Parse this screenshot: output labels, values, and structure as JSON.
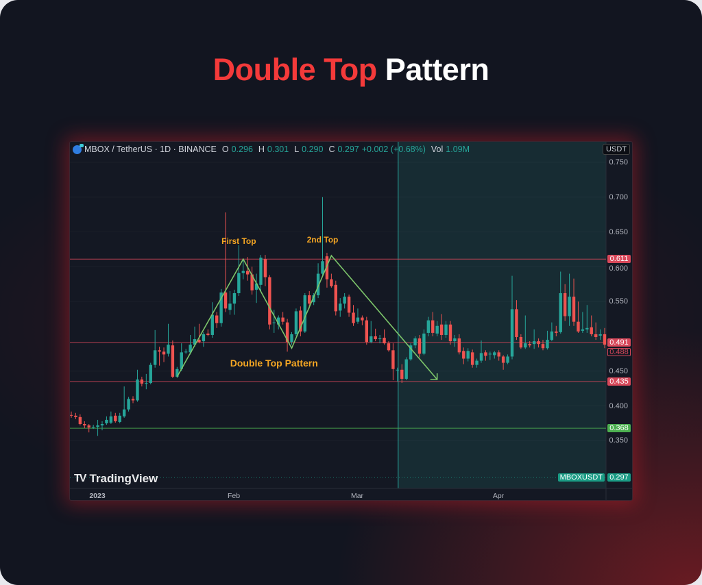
{
  "title": {
    "highlight": "Double Top",
    "rest": "Pattern"
  },
  "header": {
    "symbol": "MBOX / TetherUS · 1D · BINANCE",
    "o_label": "O",
    "o": "0.296",
    "h_label": "H",
    "h": "0.301",
    "l_label": "L",
    "l": "0.290",
    "c_label": "C",
    "c": "0.297",
    "change": "+0.002 (+0.68%)",
    "vol_label": "Vol",
    "vol": "1.09M"
  },
  "currency": "USDT",
  "branding": "TradingView",
  "symbol_tag": "MBOXUSDT",
  "colors": {
    "up": "#26a69a",
    "down": "#ef5350",
    "level": "#d8485a",
    "support": "#4caf50",
    "trend": "#7cc46a",
    "annotation": "#f5a623",
    "title_accent": "#f43a3a"
  },
  "chart_data": {
    "type": "candlestick",
    "title": "",
    "ylim": [
      0.322,
      0.78
    ],
    "y_ticks": [
      "0.750",
      "0.700",
      "0.650",
      "0.600",
      "0.550",
      "0.450",
      "0.400",
      "0.350"
    ],
    "x_ticks": [
      "2023",
      "Feb",
      "Mar",
      "Apr"
    ],
    "start": "2022-12-26",
    "ohlc": [
      [
        0.387,
        0.392,
        0.383,
        0.386
      ],
      [
        0.386,
        0.39,
        0.381,
        0.384
      ],
      [
        0.384,
        0.388,
        0.372,
        0.374
      ],
      [
        0.374,
        0.378,
        0.368,
        0.372
      ],
      [
        0.372,
        0.374,
        0.362,
        0.369
      ],
      [
        0.369,
        0.373,
        0.367,
        0.37
      ],
      [
        0.37,
        0.38,
        0.357,
        0.372
      ],
      [
        0.372,
        0.378,
        0.365,
        0.374
      ],
      [
        0.375,
        0.385,
        0.373,
        0.38
      ],
      [
        0.376,
        0.392,
        0.374,
        0.385
      ],
      [
        0.386,
        0.39,
        0.376,
        0.378
      ],
      [
        0.377,
        0.39,
        0.375,
        0.386
      ],
      [
        0.385,
        0.428,
        0.383,
        0.395
      ],
      [
        0.395,
        0.413,
        0.392,
        0.41
      ],
      [
        0.41,
        0.414,
        0.404,
        0.408
      ],
      [
        0.408,
        0.452,
        0.406,
        0.438
      ],
      [
        0.438,
        0.442,
        0.428,
        0.432
      ],
      [
        0.432,
        0.446,
        0.424,
        0.433
      ],
      [
        0.433,
        0.462,
        0.431,
        0.459
      ],
      [
        0.459,
        0.509,
        0.455,
        0.48
      ],
      [
        0.48,
        0.485,
        0.458,
        0.478
      ],
      [
        0.478,
        0.484,
        0.463,
        0.474
      ],
      [
        0.475,
        0.518,
        0.471,
        0.488
      ],
      [
        0.487,
        0.494,
        0.44,
        0.442
      ],
      [
        0.442,
        0.456,
        0.44,
        0.453
      ],
      [
        0.453,
        0.49,
        0.45,
        0.477
      ],
      [
        0.477,
        0.482,
        0.475,
        0.478
      ],
      [
        0.477,
        0.502,
        0.474,
        0.488
      ],
      [
        0.488,
        0.514,
        0.485,
        0.496
      ],
      [
        0.495,
        0.518,
        0.49,
        0.492
      ],
      [
        0.493,
        0.506,
        0.485,
        0.503
      ],
      [
        0.504,
        0.51,
        0.5,
        0.502
      ],
      [
        0.502,
        0.549,
        0.498,
        0.531
      ],
      [
        0.53,
        0.535,
        0.512,
        0.519
      ],
      [
        0.519,
        0.568,
        0.514,
        0.563
      ],
      [
        0.563,
        0.678,
        0.535,
        0.54
      ],
      [
        0.538,
        0.565,
        0.531,
        0.547
      ],
      [
        0.547,
        0.567,
        0.531,
        0.562
      ],
      [
        0.562,
        0.631,
        0.558,
        0.591
      ],
      [
        0.591,
        0.61,
        0.582,
        0.594
      ],
      [
        0.594,
        0.614,
        0.58,
        0.589
      ],
      [
        0.589,
        0.6,
        0.56,
        0.566
      ],
      [
        0.567,
        0.59,
        0.548,
        0.576
      ],
      [
        0.574,
        0.617,
        0.565,
        0.613
      ],
      [
        0.611,
        0.617,
        0.572,
        0.585
      ],
      [
        0.585,
        0.588,
        0.51,
        0.517
      ],
      [
        0.519,
        0.538,
        0.505,
        0.52
      ],
      [
        0.517,
        0.53,
        0.51,
        0.527
      ],
      [
        0.527,
        0.535,
        0.517,
        0.521
      ],
      [
        0.52,
        0.525,
        0.478,
        0.492
      ],
      [
        0.492,
        0.506,
        0.488,
        0.503
      ],
      [
        0.503,
        0.54,
        0.5,
        0.536
      ],
      [
        0.537,
        0.543,
        0.5,
        0.507
      ],
      [
        0.507,
        0.562,
        0.505,
        0.559
      ],
      [
        0.559,
        0.565,
        0.54,
        0.547
      ],
      [
        0.549,
        0.562,
        0.545,
        0.559
      ],
      [
        0.559,
        0.605,
        0.555,
        0.59
      ],
      [
        0.59,
        0.7,
        0.585,
        0.608
      ],
      [
        0.615,
        0.62,
        0.57,
        0.582
      ],
      [
        0.582,
        0.59,
        0.57,
        0.572
      ],
      [
        0.574,
        0.58,
        0.53,
        0.536
      ],
      [
        0.537,
        0.555,
        0.528,
        0.547
      ],
      [
        0.547,
        0.562,
        0.54,
        0.557
      ],
      [
        0.557,
        0.56,
        0.528,
        0.534
      ],
      [
        0.534,
        0.545,
        0.515,
        0.519
      ],
      [
        0.521,
        0.54,
        0.518,
        0.527
      ],
      [
        0.527,
        0.53,
        0.516,
        0.523
      ],
      [
        0.523,
        0.528,
        0.488,
        0.492
      ],
      [
        0.492,
        0.522,
        0.49,
        0.5
      ],
      [
        0.5,
        0.511,
        0.493,
        0.496
      ],
      [
        0.497,
        0.502,
        0.49,
        0.497
      ],
      [
        0.498,
        0.51,
        0.488,
        0.49
      ],
      [
        0.49,
        0.493,
        0.478,
        0.48
      ],
      [
        0.48,
        0.49,
        0.437,
        0.453
      ],
      [
        0.452,
        0.455,
        0.435,
        0.452
      ],
      [
        0.452,
        0.46,
        0.433,
        0.439
      ],
      [
        0.439,
        0.47,
        0.437,
        0.467
      ],
      [
        0.467,
        0.49,
        0.465,
        0.487
      ],
      [
        0.487,
        0.5,
        0.483,
        0.497
      ],
      [
        0.497,
        0.502,
        0.47,
        0.475
      ],
      [
        0.475,
        0.51,
        0.473,
        0.504
      ],
      [
        0.505,
        0.528,
        0.5,
        0.523
      ],
      [
        0.523,
        0.535,
        0.5,
        0.505
      ],
      [
        0.504,
        0.522,
        0.5,
        0.515
      ],
      [
        0.517,
        0.532,
        0.495,
        0.502
      ],
      [
        0.502,
        0.522,
        0.498,
        0.517
      ],
      [
        0.517,
        0.522,
        0.488,
        0.493
      ],
      [
        0.493,
        0.502,
        0.485,
        0.497
      ],
      [
        0.497,
        0.503,
        0.474,
        0.477
      ],
      [
        0.479,
        0.484,
        0.46,
        0.468
      ],
      [
        0.468,
        0.483,
        0.464,
        0.479
      ],
      [
        0.477,
        0.481,
        0.455,
        0.459
      ],
      [
        0.459,
        0.468,
        0.455,
        0.465
      ],
      [
        0.465,
        0.494,
        0.462,
        0.476
      ],
      [
        0.477,
        0.48,
        0.465,
        0.472
      ],
      [
        0.474,
        0.478,
        0.466,
        0.475
      ],
      [
        0.473,
        0.479,
        0.468,
        0.477
      ],
      [
        0.477,
        0.48,
        0.465,
        0.471
      ],
      [
        0.471,
        0.473,
        0.452,
        0.462
      ],
      [
        0.462,
        0.474,
        0.46,
        0.471
      ],
      [
        0.471,
        0.587,
        0.467,
        0.539
      ],
      [
        0.539,
        0.552,
        0.495,
        0.499
      ],
      [
        0.499,
        0.503,
        0.482,
        0.484
      ],
      [
        0.484,
        0.53,
        0.482,
        0.49
      ],
      [
        0.489,
        0.493,
        0.484,
        0.487
      ],
      [
        0.489,
        0.51,
        0.482,
        0.493
      ],
      [
        0.493,
        0.497,
        0.484,
        0.489
      ],
      [
        0.489,
        0.495,
        0.48,
        0.483
      ],
      [
        0.483,
        0.508,
        0.481,
        0.495
      ],
      [
        0.495,
        0.52,
        0.493,
        0.507
      ],
      [
        0.507,
        0.515,
        0.5,
        0.505
      ],
      [
        0.506,
        0.593,
        0.504,
        0.562
      ],
      [
        0.562,
        0.575,
        0.522,
        0.529
      ],
      [
        0.529,
        0.59,
        0.515,
        0.557
      ],
      [
        0.557,
        0.583,
        0.515,
        0.521
      ],
      [
        0.521,
        0.55,
        0.505,
        0.507
      ],
      [
        0.508,
        0.535,
        0.505,
        0.51
      ],
      [
        0.51,
        0.545,
        0.505,
        0.512
      ],
      [
        0.513,
        0.53,
        0.5,
        0.503
      ],
      [
        0.503,
        0.52,
        0.495,
        0.499
      ],
      [
        0.501,
        0.51,
        0.495,
        0.503
      ],
      [
        0.503,
        0.512,
        0.483,
        0.488
      ]
    ],
    "levels": [
      {
        "price": 0.611,
        "label": "0.611",
        "color": "#d8485a",
        "style": "solid"
      },
      {
        "price": 0.491,
        "label": "0.491",
        "color": "#d8485a",
        "style": "solid"
      },
      {
        "price": 0.435,
        "label": "0.435",
        "color": "#d8485a",
        "style": "solid"
      },
      {
        "price": 0.368,
        "label": "0.368",
        "color": "#4caf50",
        "style": "solid"
      },
      {
        "price": 0.297,
        "label": "0.297",
        "color": "#1a9c85",
        "style": "dotted"
      }
    ],
    "last_price": "0.488",
    "trend_path": [
      [
        24,
        0.442
      ],
      [
        39,
        0.611
      ],
      [
        50,
        0.483
      ],
      [
        59,
        0.616
      ],
      [
        83,
        0.438
      ]
    ],
    "highlight_from_index": 74,
    "annotations": [
      {
        "text": "First Top",
        "index": 38,
        "price": 0.636
      },
      {
        "text": "2nd Top",
        "index": 57,
        "price": 0.638
      },
      {
        "text": "Double Top Pattern",
        "index": 46,
        "price": 0.462
      }
    ]
  }
}
